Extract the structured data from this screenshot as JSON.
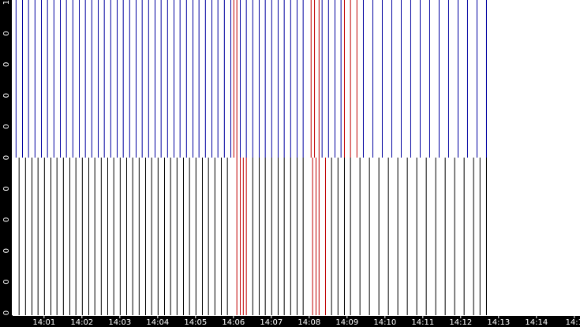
{
  "chart_data": {
    "type": "event",
    "y_tick_labels": [
      "1",
      "0",
      "0",
      "0",
      "0",
      "0",
      "0",
      "0",
      "0",
      "0",
      "0"
    ],
    "xlim": [
      0.17,
      15.15
    ],
    "xticks": [
      {
        "value": 1,
        "label": "14:01"
      },
      {
        "value": 2,
        "label": "14:02"
      },
      {
        "value": 3,
        "label": "14:03"
      },
      {
        "value": 4,
        "label": "14:04"
      },
      {
        "value": 5,
        "label": "14:05"
      },
      {
        "value": 6,
        "label": "14:06"
      },
      {
        "value": 7,
        "label": "14:07"
      },
      {
        "value": 8,
        "label": "14:08"
      },
      {
        "value": 9,
        "label": "14:09"
      },
      {
        "value": 10,
        "label": "14:10"
      },
      {
        "value": 11,
        "label": "14:11"
      },
      {
        "value": 12,
        "label": "14:12"
      },
      {
        "value": 13,
        "label": "14:13"
      },
      {
        "value": 14,
        "label": "14:14"
      },
      {
        "value": 15,
        "label": "14:1"
      }
    ],
    "ylim": [
      0,
      1
    ],
    "series": [
      {
        "color": "#0000a0",
        "y_range": [
          0.5,
          1
        ],
        "x": [
          0.25,
          0.42,
          0.58,
          0.75,
          0.92,
          1.08,
          1.25,
          1.42,
          1.58,
          1.75,
          1.92,
          2.08,
          2.25,
          2.42,
          2.58,
          2.75,
          2.92,
          3.08,
          3.25,
          3.42,
          3.58,
          3.75,
          3.92,
          4.08,
          4.25,
          4.42,
          4.58,
          4.75,
          4.92,
          5.08,
          5.25,
          5.42,
          5.58,
          5.75,
          5.92,
          6.17,
          6.33,
          6.5,
          6.67,
          6.83,
          7.0,
          7.17,
          7.33,
          7.5,
          7.67,
          7.83,
          8.33,
          8.5,
          8.67,
          8.83,
          9.42,
          9.67,
          9.92,
          10.17,
          10.42,
          10.67,
          10.92,
          11.17,
          11.42,
          11.67,
          11.92,
          12.17,
          12.42,
          12.67
        ]
      },
      {
        "color": "#c00000",
        "y_range": [
          0.5,
          1
        ],
        "x": [
          6.0,
          6.08,
          8.04,
          8.13,
          8.25,
          8.92,
          9.08,
          9.25
        ]
      },
      {
        "color": "#000000",
        "y_range": [
          0,
          0.5
        ],
        "x": [
          0.33,
          0.5,
          0.67,
          0.83,
          1.0,
          1.17,
          1.33,
          1.5,
          1.67,
          1.83,
          2.0,
          2.17,
          2.33,
          2.5,
          2.67,
          2.83,
          3.0,
          3.17,
          3.33,
          3.5,
          3.67,
          3.83,
          4.0,
          4.17,
          4.33,
          4.5,
          4.67,
          4.83,
          5.0,
          5.17,
          5.33,
          5.5,
          5.67,
          5.83,
          6.5,
          6.67,
          6.83,
          7.0,
          7.17,
          7.33,
          7.5,
          7.67,
          7.83,
          8.58,
          8.75,
          8.92,
          9.08,
          9.33,
          9.58,
          9.83,
          10.08,
          10.33,
          10.58,
          10.83,
          11.08,
          11.33,
          11.58,
          11.83,
          12.08,
          12.33,
          12.5,
          12.67
        ]
      },
      {
        "color": "#c00000",
        "y_range": [
          0,
          0.5
        ],
        "x": [
          6.08,
          6.17,
          6.25,
          6.33,
          8.08,
          8.17,
          8.25,
          8.42
        ]
      }
    ]
  }
}
